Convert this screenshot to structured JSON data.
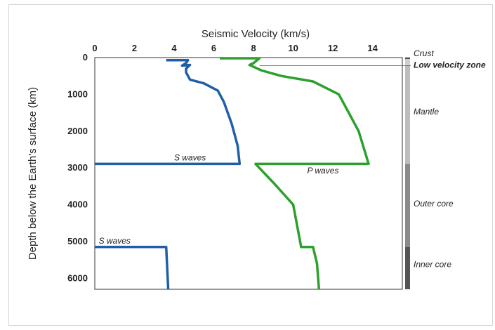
{
  "chart_data": {
    "type": "line",
    "title": "",
    "xlabel": "Seismic Velocity (km/s)",
    "ylabel": "Depth below the Earth's surface (km)",
    "xlim": [
      0,
      15.5
    ],
    "ylim": [
      6300,
      0
    ],
    "x_ticks": [
      "0",
      "2",
      "4",
      "6",
      "8",
      "10",
      "12",
      "14"
    ],
    "y_ticks": [
      "0",
      "1000",
      "2000",
      "3000",
      "4000",
      "5000",
      "6000"
    ],
    "series": [
      {
        "name": "S waves",
        "color": "#1f5fa8",
        "points": [
          [
            3.6,
            70
          ],
          [
            4.7,
            70
          ],
          [
            4.6,
            150
          ],
          [
            4.4,
            220
          ],
          [
            4.8,
            200
          ],
          [
            4.6,
            300
          ],
          [
            4.6,
            400
          ],
          [
            4.8,
            600
          ],
          [
            5.5,
            700
          ],
          [
            6.2,
            900
          ],
          [
            6.5,
            1200
          ],
          [
            6.9,
            1800
          ],
          [
            7.2,
            2400
          ],
          [
            7.3,
            2890
          ],
          [
            0,
            2890
          ]
        ]
      },
      {
        "name": "S waves",
        "color": "#1f5fa8",
        "points": [
          [
            0,
            5150
          ],
          [
            3.6,
            5150
          ],
          [
            3.7,
            6300
          ]
        ]
      },
      {
        "name": "P waves",
        "color": "#2ca02c",
        "points": [
          [
            6.3,
            20
          ],
          [
            8.3,
            20
          ],
          [
            8.0,
            150
          ],
          [
            7.8,
            200
          ],
          [
            8.4,
            350
          ],
          [
            9.4,
            500
          ],
          [
            11.0,
            650
          ],
          [
            12.3,
            1000
          ],
          [
            13.3,
            2000
          ],
          [
            13.8,
            2890
          ],
          [
            8.1,
            2890
          ],
          [
            9.0,
            3400
          ],
          [
            10.0,
            4000
          ],
          [
            10.4,
            5150
          ],
          [
            11.0,
            5150
          ],
          [
            11.2,
            5600
          ],
          [
            11.3,
            6300
          ]
        ]
      }
    ],
    "annotations": [
      "S waves",
      "S waves",
      "P waves"
    ],
    "layers": [
      {
        "name": "Crust",
        "from": 0,
        "to": 35,
        "color": "#222222"
      },
      {
        "name": "Low velocity zone",
        "from": 35,
        "to": 220,
        "color": "#cfcfcf"
      },
      {
        "name": "Mantle",
        "from": 220,
        "to": 2890,
        "color": "#bdbdbd"
      },
      {
        "name": "Outer core",
        "from": 2890,
        "to": 5150,
        "color": "#8a8a8a"
      },
      {
        "name": "Inner core",
        "from": 5150,
        "to": 6300,
        "color": "#555555"
      }
    ],
    "grid": false,
    "legend": "none"
  }
}
